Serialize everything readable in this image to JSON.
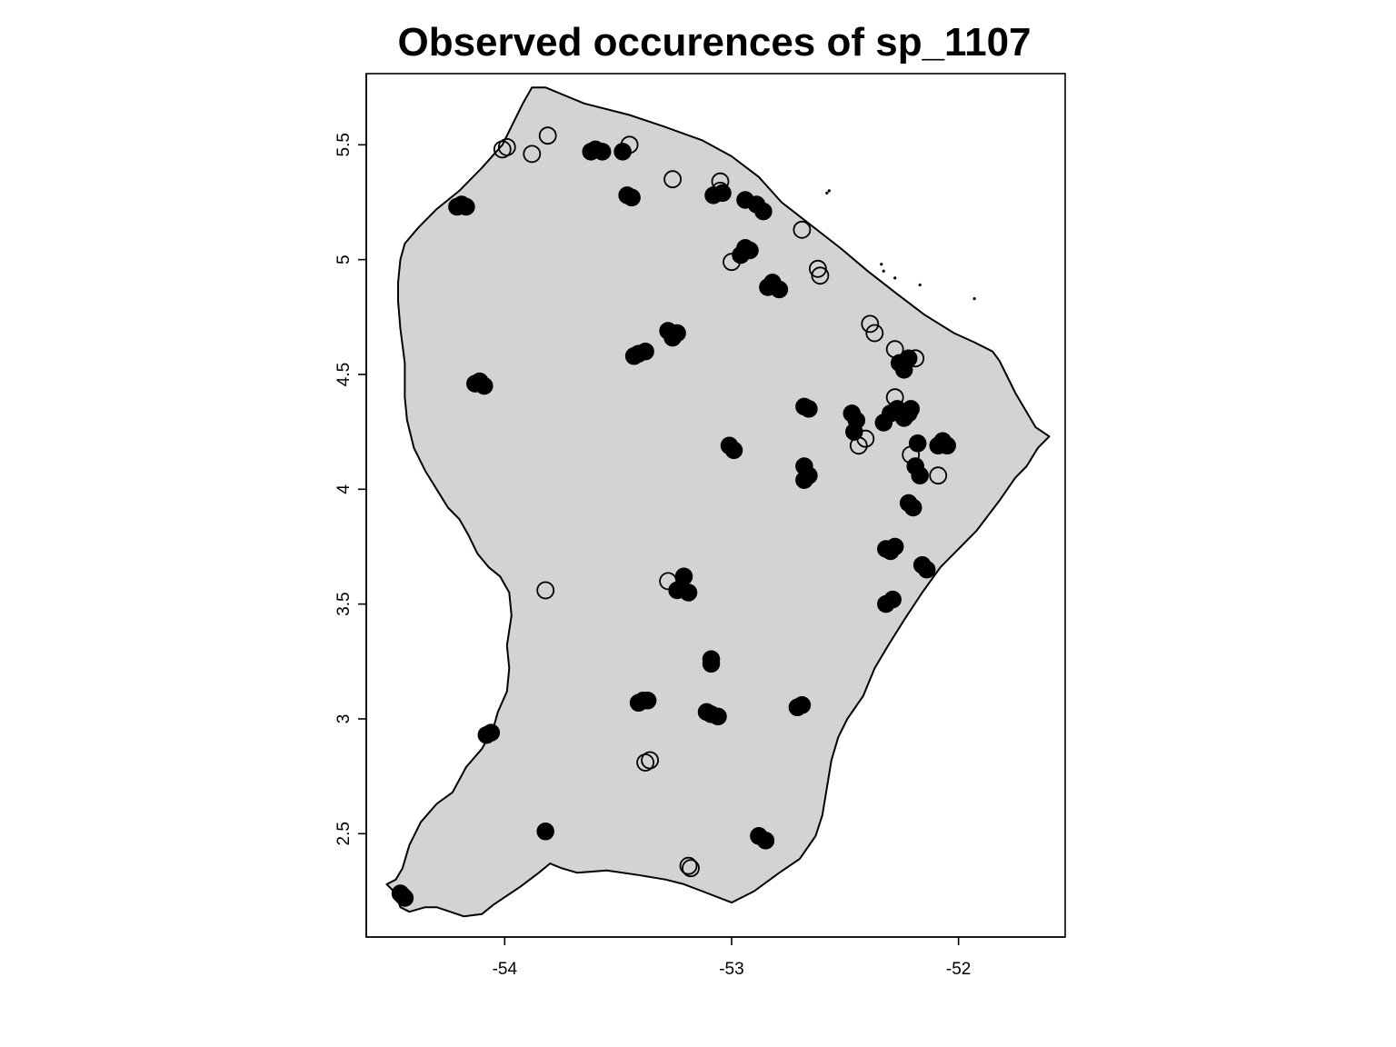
{
  "chart_data": {
    "type": "scatter",
    "title": "Observed occurences of sp_1107",
    "xlabel": "",
    "ylabel": "",
    "xlim": [
      -54.61,
      -51.53
    ],
    "ylim": [
      2.05,
      5.81
    ],
    "x_ticks": [
      {
        "value": -54,
        "label": "-54"
      },
      {
        "value": -53,
        "label": "-53"
      },
      {
        "value": -52,
        "label": "-52"
      }
    ],
    "y_ticks": [
      {
        "value": 2.5,
        "label": "2.5"
      },
      {
        "value": 3,
        "label": "3"
      },
      {
        "value": 3.5,
        "label": "3.5"
      },
      {
        "value": 4,
        "label": "4"
      },
      {
        "value": 4.5,
        "label": "4.5"
      },
      {
        "value": 5,
        "label": "5"
      },
      {
        "value": 5.5,
        "label": "5.5"
      }
    ],
    "land_fill": "#d3d3d3",
    "marker_color": "#000000",
    "region_outline": [
      [
        -53.88,
        5.75
      ],
      [
        -53.82,
        5.75
      ],
      [
        -53.65,
        5.68
      ],
      [
        -53.45,
        5.63
      ],
      [
        -53.3,
        5.58
      ],
      [
        -53.13,
        5.52
      ],
      [
        -53.0,
        5.45
      ],
      [
        -52.88,
        5.36
      ],
      [
        -52.78,
        5.25
      ],
      [
        -52.65,
        5.15
      ],
      [
        -52.52,
        5.05
      ],
      [
        -52.4,
        4.95
      ],
      [
        -52.27,
        4.85
      ],
      [
        -52.15,
        4.76
      ],
      [
        -52.02,
        4.68
      ],
      [
        -51.93,
        4.64
      ],
      [
        -51.85,
        4.6
      ],
      [
        -51.82,
        4.56
      ],
      [
        -51.78,
        4.48
      ],
      [
        -51.75,
        4.42
      ],
      [
        -51.66,
        4.27
      ],
      [
        -51.6,
        4.23
      ],
      [
        -51.65,
        4.18
      ],
      [
        -51.7,
        4.1
      ],
      [
        -51.75,
        4.05
      ],
      [
        -51.82,
        3.95
      ],
      [
        -51.92,
        3.82
      ],
      [
        -52.0,
        3.74
      ],
      [
        -52.08,
        3.66
      ],
      [
        -52.16,
        3.55
      ],
      [
        -52.24,
        3.43
      ],
      [
        -52.31,
        3.32
      ],
      [
        -52.37,
        3.22
      ],
      [
        -52.42,
        3.1
      ],
      [
        -52.49,
        3.0
      ],
      [
        -52.53,
        2.92
      ],
      [
        -52.56,
        2.82
      ],
      [
        -52.58,
        2.7
      ],
      [
        -52.6,
        2.58
      ],
      [
        -52.63,
        2.49
      ],
      [
        -52.7,
        2.39
      ],
      [
        -52.79,
        2.33
      ],
      [
        -52.9,
        2.25
      ],
      [
        -53.0,
        2.2
      ],
      [
        -53.13,
        2.25
      ],
      [
        -53.21,
        2.28
      ],
      [
        -53.29,
        2.3
      ],
      [
        -53.41,
        2.32
      ],
      [
        -53.55,
        2.34
      ],
      [
        -53.68,
        2.33
      ],
      [
        -53.75,
        2.35
      ],
      [
        -53.8,
        2.37
      ],
      [
        -53.85,
        2.33
      ],
      [
        -53.93,
        2.27
      ],
      [
        -54.05,
        2.19
      ],
      [
        -54.1,
        2.15
      ],
      [
        -54.18,
        2.14
      ],
      [
        -54.24,
        2.16
      ],
      [
        -54.3,
        2.18
      ],
      [
        -54.35,
        2.18
      ],
      [
        -54.42,
        2.16
      ],
      [
        -54.46,
        2.18
      ],
      [
        -54.48,
        2.24
      ],
      [
        -54.52,
        2.28
      ],
      [
        -54.48,
        2.3
      ],
      [
        -54.45,
        2.35
      ],
      [
        -54.42,
        2.45
      ],
      [
        -54.37,
        2.55
      ],
      [
        -54.3,
        2.63
      ],
      [
        -54.23,
        2.68
      ],
      [
        -54.17,
        2.79
      ],
      [
        -54.1,
        2.87
      ],
      [
        -54.05,
        2.96
      ],
      [
        -54.03,
        3.03
      ],
      [
        -53.99,
        3.12
      ],
      [
        -53.98,
        3.22
      ],
      [
        -53.99,
        3.32
      ],
      [
        -53.97,
        3.45
      ],
      [
        -53.98,
        3.55
      ],
      [
        -54.02,
        3.62
      ],
      [
        -54.07,
        3.66
      ],
      [
        -54.12,
        3.72
      ],
      [
        -54.16,
        3.8
      ],
      [
        -54.2,
        3.87
      ],
      [
        -54.25,
        3.92
      ],
      [
        -54.3,
        4.0
      ],
      [
        -54.35,
        4.08
      ],
      [
        -54.4,
        4.18
      ],
      [
        -54.43,
        4.3
      ],
      [
        -54.44,
        4.4
      ],
      [
        -54.44,
        4.55
      ],
      [
        -54.46,
        4.7
      ],
      [
        -54.47,
        4.82
      ],
      [
        -54.47,
        4.9
      ],
      [
        -54.46,
        5.0
      ],
      [
        -54.44,
        5.07
      ],
      [
        -54.38,
        5.14
      ],
      [
        -54.3,
        5.22
      ],
      [
        -54.2,
        5.3
      ],
      [
        -54.1,
        5.4
      ],
      [
        -54.01,
        5.5
      ],
      [
        -53.97,
        5.58
      ],
      [
        -53.92,
        5.68
      ]
    ],
    "islets": [
      [
        -52.58,
        5.29
      ],
      [
        -52.57,
        5.3
      ],
      [
        -52.34,
        4.98
      ],
      [
        -52.33,
        4.95
      ],
      [
        -52.28,
        4.92
      ],
      [
        -52.17,
        4.89
      ],
      [
        -51.93,
        4.83
      ]
    ],
    "series": [
      {
        "name": "present",
        "marker": "filled-circle",
        "points": [
          [
            -54.19,
            5.24
          ],
          [
            -54.21,
            5.23
          ],
          [
            -54.17,
            5.23
          ],
          [
            -53.6,
            5.48
          ],
          [
            -53.57,
            5.47
          ],
          [
            -53.62,
            5.47
          ],
          [
            -53.48,
            5.47
          ],
          [
            -53.46,
            5.28
          ],
          [
            -53.44,
            5.27
          ],
          [
            -53.08,
            5.28
          ],
          [
            -53.04,
            5.29
          ],
          [
            -52.94,
            5.26
          ],
          [
            -52.89,
            5.24
          ],
          [
            -52.86,
            5.21
          ],
          [
            -52.94,
            5.05
          ],
          [
            -52.96,
            5.02
          ],
          [
            -52.92,
            5.04
          ],
          [
            -52.84,
            4.88
          ],
          [
            -52.82,
            4.9
          ],
          [
            -52.79,
            4.87
          ],
          [
            -53.28,
            4.69
          ],
          [
            -53.26,
            4.66
          ],
          [
            -53.24,
            4.68
          ],
          [
            -53.41,
            4.59
          ],
          [
            -53.43,
            4.58
          ],
          [
            -53.38,
            4.6
          ],
          [
            -54.13,
            4.46
          ],
          [
            -54.11,
            4.47
          ],
          [
            -54.09,
            4.45
          ],
          [
            -52.68,
            4.36
          ],
          [
            -52.66,
            4.35
          ],
          [
            -52.47,
            4.33
          ],
          [
            -52.45,
            4.3
          ],
          [
            -52.46,
            4.25
          ],
          [
            -52.33,
            4.29
          ],
          [
            -52.3,
            4.33
          ],
          [
            -52.27,
            4.35
          ],
          [
            -52.24,
            4.31
          ],
          [
            -52.22,
            4.33
          ],
          [
            -52.21,
            4.35
          ],
          [
            -52.26,
            4.55
          ],
          [
            -52.24,
            4.52
          ],
          [
            -52.22,
            4.57
          ],
          [
            -53.01,
            4.19
          ],
          [
            -52.99,
            4.17
          ],
          [
            -52.68,
            4.1
          ],
          [
            -52.66,
            4.06
          ],
          [
            -52.68,
            4.04
          ],
          [
            -52.18,
            4.2
          ],
          [
            -52.19,
            4.1
          ],
          [
            -52.17,
            4.06
          ],
          [
            -52.07,
            4.21
          ],
          [
            -52.05,
            4.19
          ],
          [
            -52.09,
            4.19
          ],
          [
            -52.22,
            3.94
          ],
          [
            -52.2,
            3.92
          ],
          [
            -52.32,
            3.74
          ],
          [
            -52.3,
            3.73
          ],
          [
            -52.28,
            3.75
          ],
          [
            -52.16,
            3.67
          ],
          [
            -52.14,
            3.65
          ],
          [
            -52.32,
            3.5
          ],
          [
            -52.29,
            3.52
          ],
          [
            -53.24,
            3.56
          ],
          [
            -53.19,
            3.55
          ],
          [
            -53.21,
            3.62
          ],
          [
            -53.09,
            3.26
          ],
          [
            -53.09,
            3.24
          ],
          [
            -53.39,
            3.08
          ],
          [
            -53.41,
            3.07
          ],
          [
            -53.37,
            3.08
          ],
          [
            -53.09,
            3.02
          ],
          [
            -53.06,
            3.01
          ],
          [
            -53.11,
            3.03
          ],
          [
            -52.71,
            3.05
          ],
          [
            -52.69,
            3.06
          ],
          [
            -54.08,
            2.93
          ],
          [
            -54.06,
            2.94
          ],
          [
            -53.82,
            2.51
          ],
          [
            -52.88,
            2.49
          ],
          [
            -52.85,
            2.47
          ],
          [
            -54.45,
            2.23
          ],
          [
            -54.44,
            2.22
          ],
          [
            -54.46,
            2.24
          ]
        ]
      },
      {
        "name": "absent",
        "marker": "open-circle",
        "points": [
          [
            -53.99,
            5.49
          ],
          [
            -54.01,
            5.48
          ],
          [
            -53.88,
            5.46
          ],
          [
            -53.81,
            5.54
          ],
          [
            -53.45,
            5.5
          ],
          [
            -53.26,
            5.35
          ],
          [
            -53.05,
            5.34
          ],
          [
            -53.05,
            5.3
          ],
          [
            -52.69,
            5.13
          ],
          [
            -52.62,
            4.96
          ],
          [
            -52.61,
            4.93
          ],
          [
            -53.0,
            4.99
          ],
          [
            -52.94,
            5.05
          ],
          [
            -52.39,
            4.72
          ],
          [
            -52.37,
            4.68
          ],
          [
            -52.28,
            4.61
          ],
          [
            -52.19,
            4.57
          ],
          [
            -52.28,
            4.4
          ],
          [
            -52.41,
            4.22
          ],
          [
            -52.44,
            4.19
          ],
          [
            -52.21,
            4.15
          ],
          [
            -52.09,
            4.06
          ],
          [
            -53.82,
            3.56
          ],
          [
            -53.28,
            3.6
          ],
          [
            -53.36,
            2.82
          ],
          [
            -53.38,
            2.81
          ],
          [
            -53.19,
            2.36
          ],
          [
            -53.18,
            2.35
          ]
        ]
      }
    ]
  }
}
